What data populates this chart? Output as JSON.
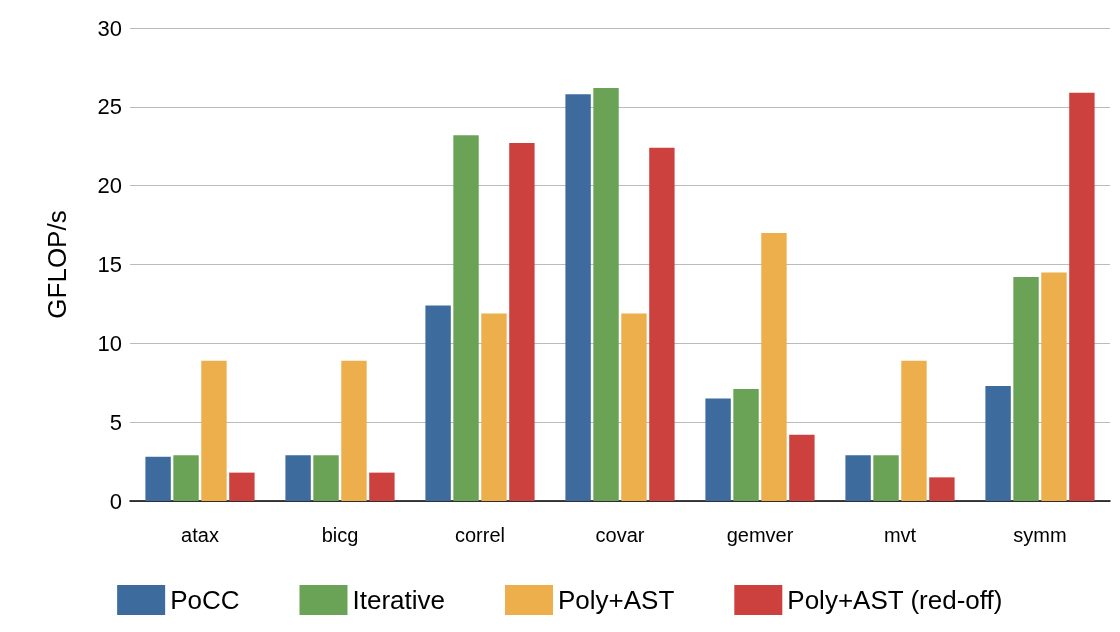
{
  "chart_data": {
    "type": "bar",
    "ylabel": "GFLOP/s",
    "categories": [
      "atax",
      "bicg",
      "correl",
      "covar",
      "gemver",
      "mvt",
      "symm"
    ],
    "series": [
      {
        "name": "PoCC",
        "color": "#3d6b9e",
        "values": [
          2.8,
          2.9,
          12.4,
          25.8,
          6.5,
          2.9,
          7.3
        ]
      },
      {
        "name": "Iterative",
        "color": "#6ba356",
        "values": [
          2.9,
          2.9,
          23.2,
          26.2,
          7.1,
          2.9,
          14.2
        ]
      },
      {
        "name": "Poly+AST",
        "color": "#ecaf4b",
        "values": [
          8.9,
          8.9,
          11.9,
          11.9,
          17.0,
          8.9,
          14.5
        ]
      },
      {
        "name": "Poly+AST (red-off)",
        "color": "#cc403e",
        "values": [
          1.8,
          1.8,
          22.7,
          22.4,
          4.2,
          1.5,
          25.9
        ]
      }
    ],
    "ylim": [
      0,
      30
    ],
    "yticks": [
      0,
      5,
      10,
      15,
      20,
      25,
      30
    ],
    "grid": "y",
    "legend": "bottom"
  }
}
